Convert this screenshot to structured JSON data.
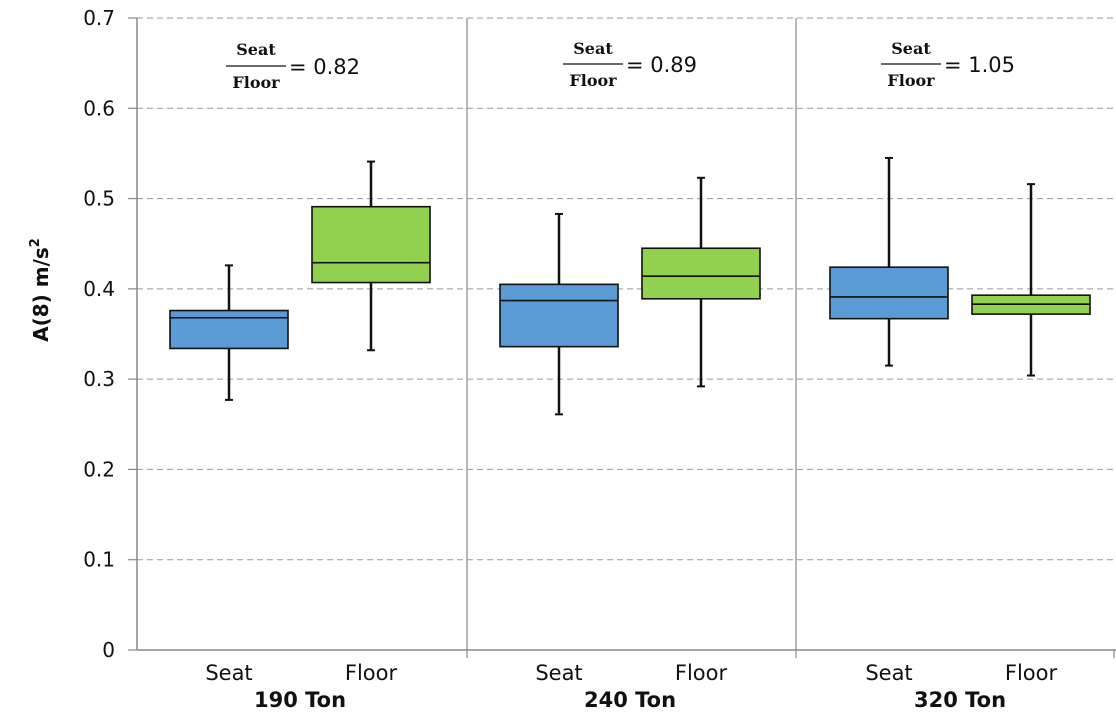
{
  "chart_data": {
    "type": "boxplot",
    "ylabel_main": "A(8) m/s",
    "ylabel_sup": "2",
    "ylim": [
      0,
      0.7
    ],
    "yticks": [
      "0",
      "0.1",
      "0.2",
      "0.3",
      "0.4",
      "0.5",
      "0.6",
      "0.7"
    ],
    "ytick_values": [
      0,
      0.1,
      0.2,
      0.3,
      0.4,
      0.5,
      0.6,
      0.7
    ],
    "grid": "horizontal-dashed",
    "colors": {
      "Seat": "#5b9bd5",
      "Floor": "#92d050"
    },
    "groups": [
      {
        "name": "190 Ton",
        "ratio": {
          "numerator": "Seat",
          "denominator": "Floor",
          "value": "= 0.82"
        },
        "boxes": [
          {
            "label": "Seat",
            "min": 0.277,
            "q1": 0.334,
            "median": 0.368,
            "q3": 0.376,
            "max": 0.426
          },
          {
            "label": "Floor",
            "min": 0.332,
            "q1": 0.407,
            "median": 0.429,
            "q3": 0.491,
            "max": 0.541
          }
        ]
      },
      {
        "name": "240 Ton",
        "ratio": {
          "numerator": "Seat",
          "denominator": "Floor",
          "value": "= 0.89"
        },
        "boxes": [
          {
            "label": "Seat",
            "min": 0.261,
            "q1": 0.336,
            "median": 0.387,
            "q3": 0.405,
            "max": 0.483
          },
          {
            "label": "Floor",
            "min": 0.292,
            "q1": 0.389,
            "median": 0.414,
            "q3": 0.445,
            "max": 0.523
          }
        ]
      },
      {
        "name": "320 Ton",
        "ratio": {
          "numerator": "Seat",
          "denominator": "Floor",
          "value": "= 1.05"
        },
        "boxes": [
          {
            "label": "Seat",
            "min": 0.315,
            "q1": 0.367,
            "median": 0.391,
            "q3": 0.424,
            "max": 0.545
          },
          {
            "label": "Floor",
            "min": 0.304,
            "q1": 0.372,
            "median": 0.383,
            "q3": 0.393,
            "max": 0.516
          }
        ]
      }
    ]
  }
}
